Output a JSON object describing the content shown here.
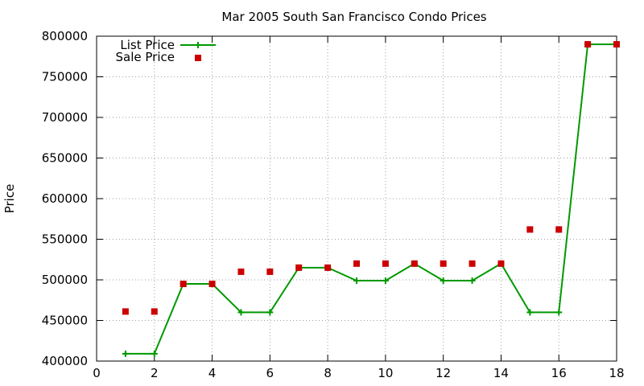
{
  "chart_data": {
    "type": "line",
    "title": "Mar 2005 South San Francisco Condo Prices",
    "xlabel": "",
    "ylabel": "Price",
    "xlim": [
      0,
      18
    ],
    "ylim": [
      400000,
      800000
    ],
    "x_ticks": [
      0,
      2,
      4,
      6,
      8,
      10,
      12,
      14,
      16,
      18
    ],
    "y_ticks": [
      400000,
      450000,
      500000,
      550000,
      600000,
      650000,
      700000,
      750000,
      800000
    ],
    "grid": true,
    "legend_position": "top-left",
    "x": [
      1,
      2,
      3,
      4,
      5,
      6,
      7,
      8,
      9,
      10,
      11,
      12,
      13,
      14,
      15,
      16,
      17,
      18
    ],
    "series": [
      {
        "name": "List Price",
        "style": "line-points",
        "marker": "plus",
        "color": "#009900",
        "values": [
          409000,
          409000,
          495000,
          495000,
          460000,
          460000,
          515000,
          515000,
          499000,
          499000,
          520000,
          499000,
          499000,
          520000,
          460000,
          460000,
          790000,
          790000
        ]
      },
      {
        "name": "Sale Price",
        "style": "points",
        "marker": "square",
        "color": "#cc0000",
        "values": [
          461000,
          461000,
          495000,
          495000,
          510000,
          510000,
          515000,
          515000,
          520000,
          520000,
          520000,
          520000,
          520000,
          520000,
          562000,
          562000,
          790000,
          790000
        ]
      }
    ]
  }
}
